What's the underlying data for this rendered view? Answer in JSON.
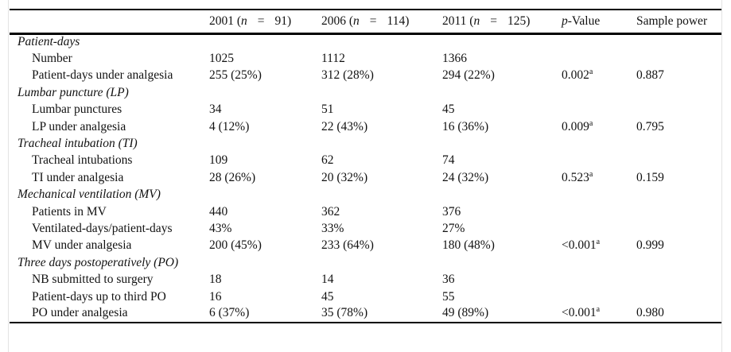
{
  "table": {
    "header": {
      "row_label": "",
      "years": [
        {
          "prefix": "2001 (",
          "var": "n",
          "eq": "=",
          "value": "91)"
        },
        {
          "prefix": "2006 (",
          "var": "n",
          "eq": "=",
          "value": "114)"
        },
        {
          "prefix": "2011 (",
          "var": "n",
          "eq": "=",
          "value": "125)"
        }
      ],
      "p_value": {
        "symbol": "p",
        "rest": "-Value"
      },
      "sample_power": "Sample power"
    },
    "sections": [
      {
        "title": "Patient-days",
        "rows": [
          {
            "label": "Number",
            "y2001": "1025",
            "y2006": "1112",
            "y2011": "1366",
            "p": "",
            "p_sup": "",
            "power": ""
          },
          {
            "label": "Patient-days under analgesia",
            "y2001": "255 (25%)",
            "y2006": "312 (28%)",
            "y2011": "294 (22%)",
            "p": "0.002",
            "p_sup": "a",
            "power": "0.887"
          }
        ]
      },
      {
        "title": "Lumbar puncture (LP)",
        "rows": [
          {
            "label": "Lumbar punctures",
            "y2001": "34",
            "y2006": "51",
            "y2011": "45",
            "p": "",
            "p_sup": "",
            "power": ""
          },
          {
            "label": "LP under analgesia",
            "y2001": "4 (12%)",
            "y2006": "22 (43%)",
            "y2011": "16 (36%)",
            "p": "0.009",
            "p_sup": "a",
            "power": "0.795"
          }
        ]
      },
      {
        "title": "Tracheal intubation (TI)",
        "rows": [
          {
            "label": "Tracheal intubations",
            "y2001": "109",
            "y2006": "62",
            "y2011": "74",
            "p": "",
            "p_sup": "",
            "power": ""
          },
          {
            "label": "TI under analgesia",
            "y2001": "28 (26%)",
            "y2006": "20 (32%)",
            "y2011": "24 (32%)",
            "p": "0.523",
            "p_sup": "a",
            "power": "0.159"
          }
        ]
      },
      {
        "title": "Mechanical ventilation (MV)",
        "rows": [
          {
            "label": "Patients in MV",
            "y2001": "440",
            "y2006": "362",
            "y2011": "376",
            "p": "",
            "p_sup": "",
            "power": ""
          },
          {
            "label": "Ventilated-days/patient-days",
            "y2001": "43%",
            "y2006": "33%",
            "y2011": "27%",
            "p": "",
            "p_sup": "",
            "power": ""
          },
          {
            "label": "MV under analgesia",
            "y2001": "200 (45%)",
            "y2006": "233 (64%)",
            "y2011": "180 (48%)",
            "p": "<0.001",
            "p_sup": "a",
            "power": "0.999"
          }
        ]
      },
      {
        "title": "Three days postoperatively (PO)",
        "rows": [
          {
            "label": "NB submitted to surgery",
            "y2001": "18",
            "y2006": "14",
            "y2011": "36",
            "p": "",
            "p_sup": "",
            "power": ""
          },
          {
            "label": "Patient-days up to third PO",
            "y2001": "16",
            "y2006": "45",
            "y2011": "55",
            "p": "",
            "p_sup": "",
            "power": ""
          },
          {
            "label": "PO under analgesia",
            "y2001": "6 (37%)",
            "y2006": "35 (78%)",
            "y2011": "49 (89%)",
            "p": "<0.001",
            "p_sup": "a",
            "power": "0.980"
          }
        ]
      }
    ]
  }
}
